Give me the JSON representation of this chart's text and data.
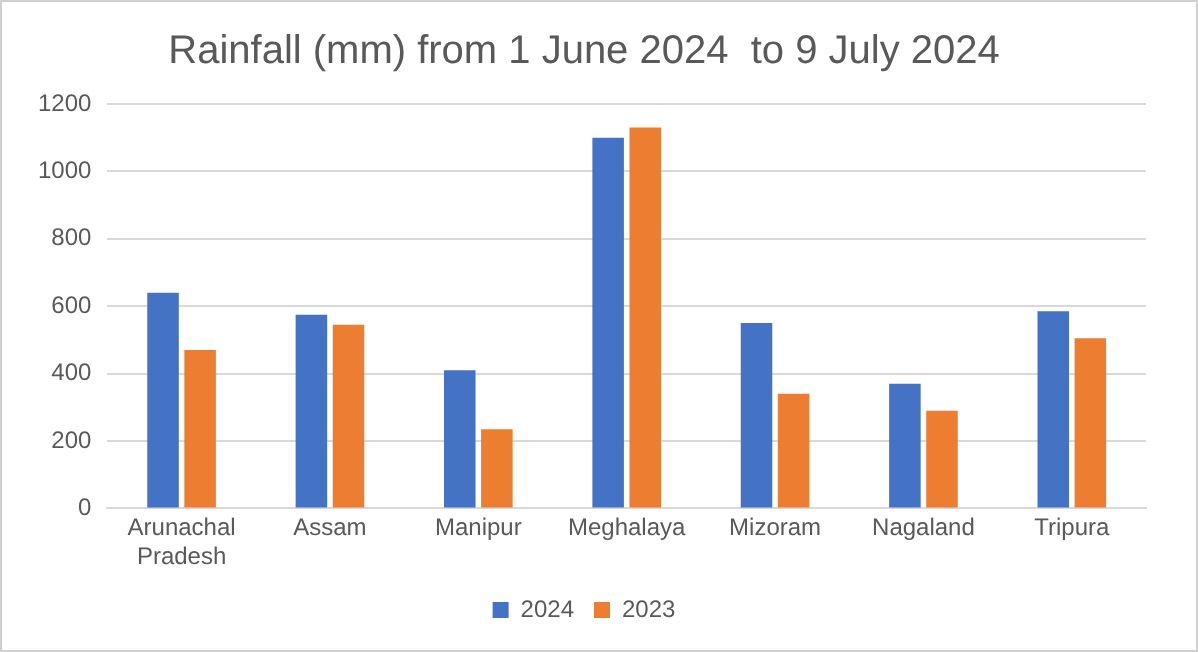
{
  "chart_data": {
    "type": "bar",
    "title": "Rainfall (mm) from 1 June 2024  to 9 July 2024",
    "categories": [
      "Arunachal Pradesh",
      "Assam",
      "Manipur",
      "Meghalaya",
      "Mizoram",
      "Nagaland",
      "Tripura"
    ],
    "series": [
      {
        "name": "2024",
        "color": "#4472c4",
        "values": [
          640,
          575,
          410,
          1100,
          550,
          370,
          585
        ]
      },
      {
        "name": "2023",
        "color": "#ed7d31",
        "values": [
          470,
          545,
          235,
          1130,
          340,
          290,
          505
        ]
      }
    ],
    "ylim": [
      0,
      1200
    ],
    "yticks": [
      0,
      200,
      400,
      600,
      800,
      1000,
      1200
    ],
    "grid": "y",
    "legend": "bottom"
  }
}
